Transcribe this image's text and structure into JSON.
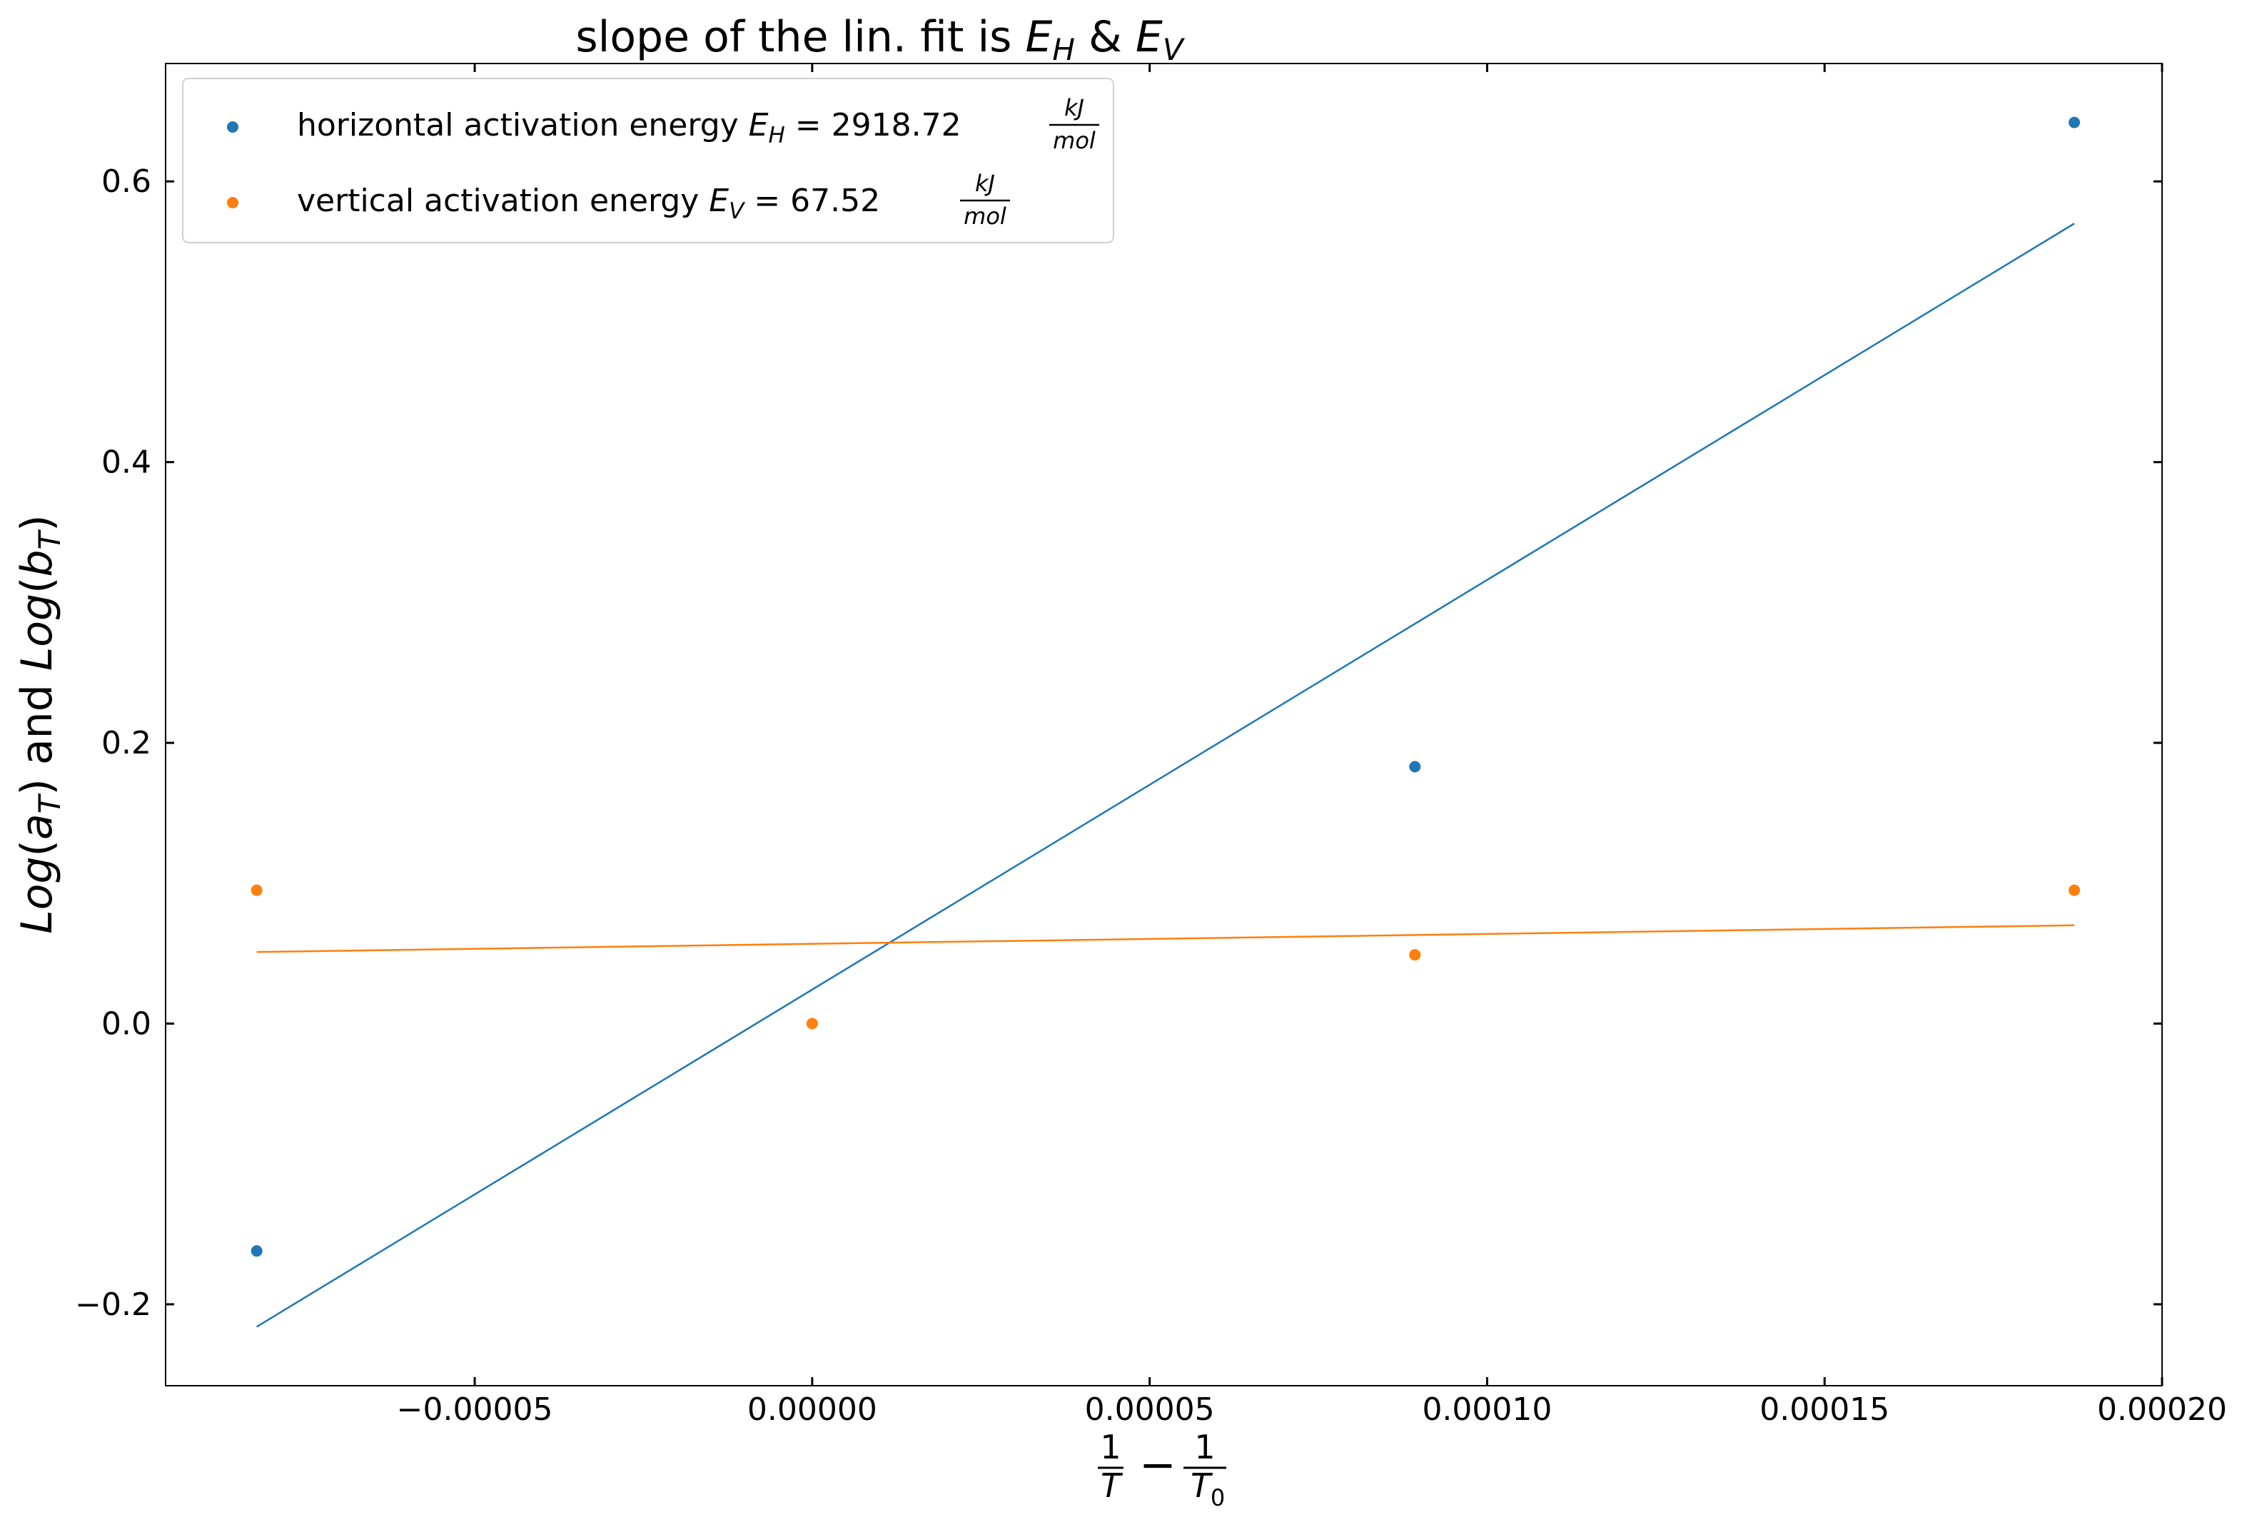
{
  "chart_data": {
    "type": "scatter",
    "title": {
      "prefix": "slope of the lin. fit is ",
      "sym1": "E",
      "sub1": "H",
      "amp": " & ",
      "sym2": "E",
      "sub2": "V"
    },
    "xlabel": {
      "num1": "1",
      "den1": "T",
      "minus": "−",
      "num2": "1",
      "den2": "T",
      "den2_sub": "0"
    },
    "ylabel": {
      "log1": "Log",
      "paren_open1": "(",
      "var1": "a",
      "sub1": "T",
      "paren_close1": ")",
      "and": " and ",
      "log2": "Log",
      "paren_open2": "(",
      "var2": "b",
      "sub2": "T",
      "paren_close2": ")"
    },
    "xlim": [
      -9.58e-05,
      0.0002
    ],
    "ylim": [
      -0.258,
      0.684
    ],
    "xticks": [
      -5e-05,
      0.0,
      5e-05,
      0.0001,
      0.00015,
      0.0002
    ],
    "xtick_labels": [
      "−0.00005",
      "0.00000",
      "0.00005",
      "0.00010",
      "0.00015",
      "0.00020"
    ],
    "yticks": [
      -0.2,
      0.0,
      0.2,
      0.4,
      0.6
    ],
    "ytick_labels": [
      "−0.2",
      "0.0",
      "0.2",
      "0.4",
      "0.6"
    ],
    "grid": false,
    "legend_position": "top-left",
    "series": [
      {
        "name": "horizontal activation energy",
        "legend_symbol": "E",
        "legend_sub": "H",
        "legend_value": " = 2918.72",
        "unit_num": "kJ",
        "unit_den": "mol",
        "color": "#1f77b4",
        "points": [
          {
            "x": -8.23e-05,
            "y": -0.162
          },
          {
            "x": 8.93e-05,
            "y": 0.183
          },
          {
            "x": 0.000187,
            "y": 0.642
          }
        ],
        "fit": [
          {
            "x": -8.23e-05,
            "y": -0.216
          },
          {
            "x": 0.000187,
            "y": 0.57
          }
        ]
      },
      {
        "name": "vertical activation energy",
        "legend_symbol": "E",
        "legend_sub": "V",
        "legend_value": " = 67.52",
        "unit_num": "kJ",
        "unit_den": "mol",
        "color": "#ff7f0e",
        "points": [
          {
            "x": -8.23e-05,
            "y": 0.095
          },
          {
            "x": 0.0,
            "y": 0.0
          },
          {
            "x": 8.93e-05,
            "y": 0.049
          },
          {
            "x": 0.000187,
            "y": 0.095
          }
        ],
        "fit": [
          {
            "x": -8.23e-05,
            "y": 0.051
          },
          {
            "x": 0.000187,
            "y": 0.07
          }
        ]
      }
    ]
  }
}
